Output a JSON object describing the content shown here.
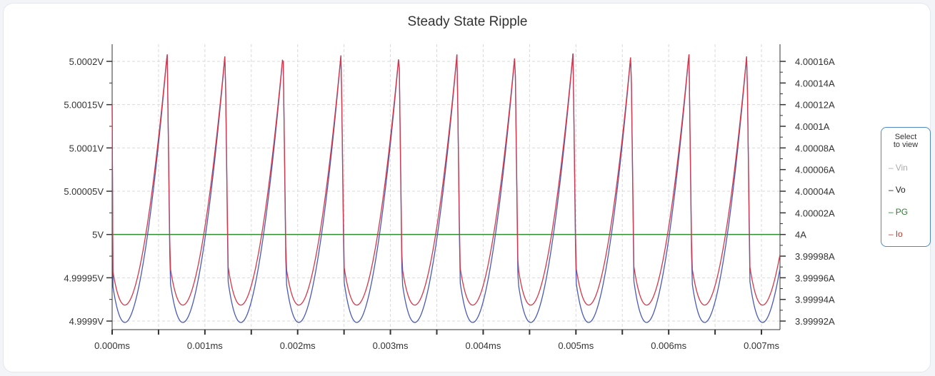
{
  "chart_data": {
    "type": "line",
    "title": "Steady State Ripple",
    "x_ticks": [
      "0.000ms",
      "0.001ms",
      "0.002ms",
      "0.003ms",
      "0.004ms",
      "0.005ms",
      "0.006ms",
      "0.007ms"
    ],
    "xlim": [
      0,
      0.0072
    ],
    "y_left_ticks": [
      "5.0002V",
      "5.00015V",
      "5.0001V",
      "5.00005V",
      "5V",
      "4.99995V",
      "4.9999V"
    ],
    "y_left_values": [
      5.0002,
      5.00015,
      5.0001,
      5.00005,
      5.0,
      4.99995,
      4.9999
    ],
    "ylim_left": [
      4.9999,
      5.0002
    ],
    "y_right_ticks": [
      "4.00016A",
      "4.00014A",
      "4.00012A",
      "4.0001A",
      "4.00008A",
      "4.00006A",
      "4.00004A",
      "4.00002A",
      "4A",
      "3.99998A",
      "3.99996A",
      "3.99994A",
      "3.99992A"
    ],
    "y_right_values": [
      4.00016,
      4.00014,
      4.00012,
      4.0001,
      4.00008,
      4.00006,
      4.00004,
      4.00002,
      4.0,
      3.99998,
      3.99996,
      3.99994,
      3.99992
    ],
    "ylim_right": [
      3.99992,
      4.00016
    ],
    "grid": true,
    "ripple_period_ms": 0.000625,
    "series": [
      {
        "name": "Vo",
        "axis": "left",
        "color": "#4a5bb5",
        "peak": 5.00021,
        "trough": 4.99988,
        "start": 5.00015
      },
      {
        "name": "Io",
        "axis": "right",
        "color": "#d6364a",
        "peak": 4.000168,
        "trough": 3.999921,
        "start": 4.00012
      },
      {
        "name": "PG",
        "axis": "left",
        "color": "#2e8b2e",
        "value": 5.0
      }
    ]
  },
  "legend": {
    "title_line1": "Select",
    "title_line2": "to view",
    "items": [
      {
        "label": "Vin",
        "color": "#aaaaaa"
      },
      {
        "label": "Vo",
        "color": "#222222"
      },
      {
        "label": "PG",
        "color": "#2e7d32"
      },
      {
        "label": "Io",
        "color": "#c0392b"
      }
    ]
  }
}
